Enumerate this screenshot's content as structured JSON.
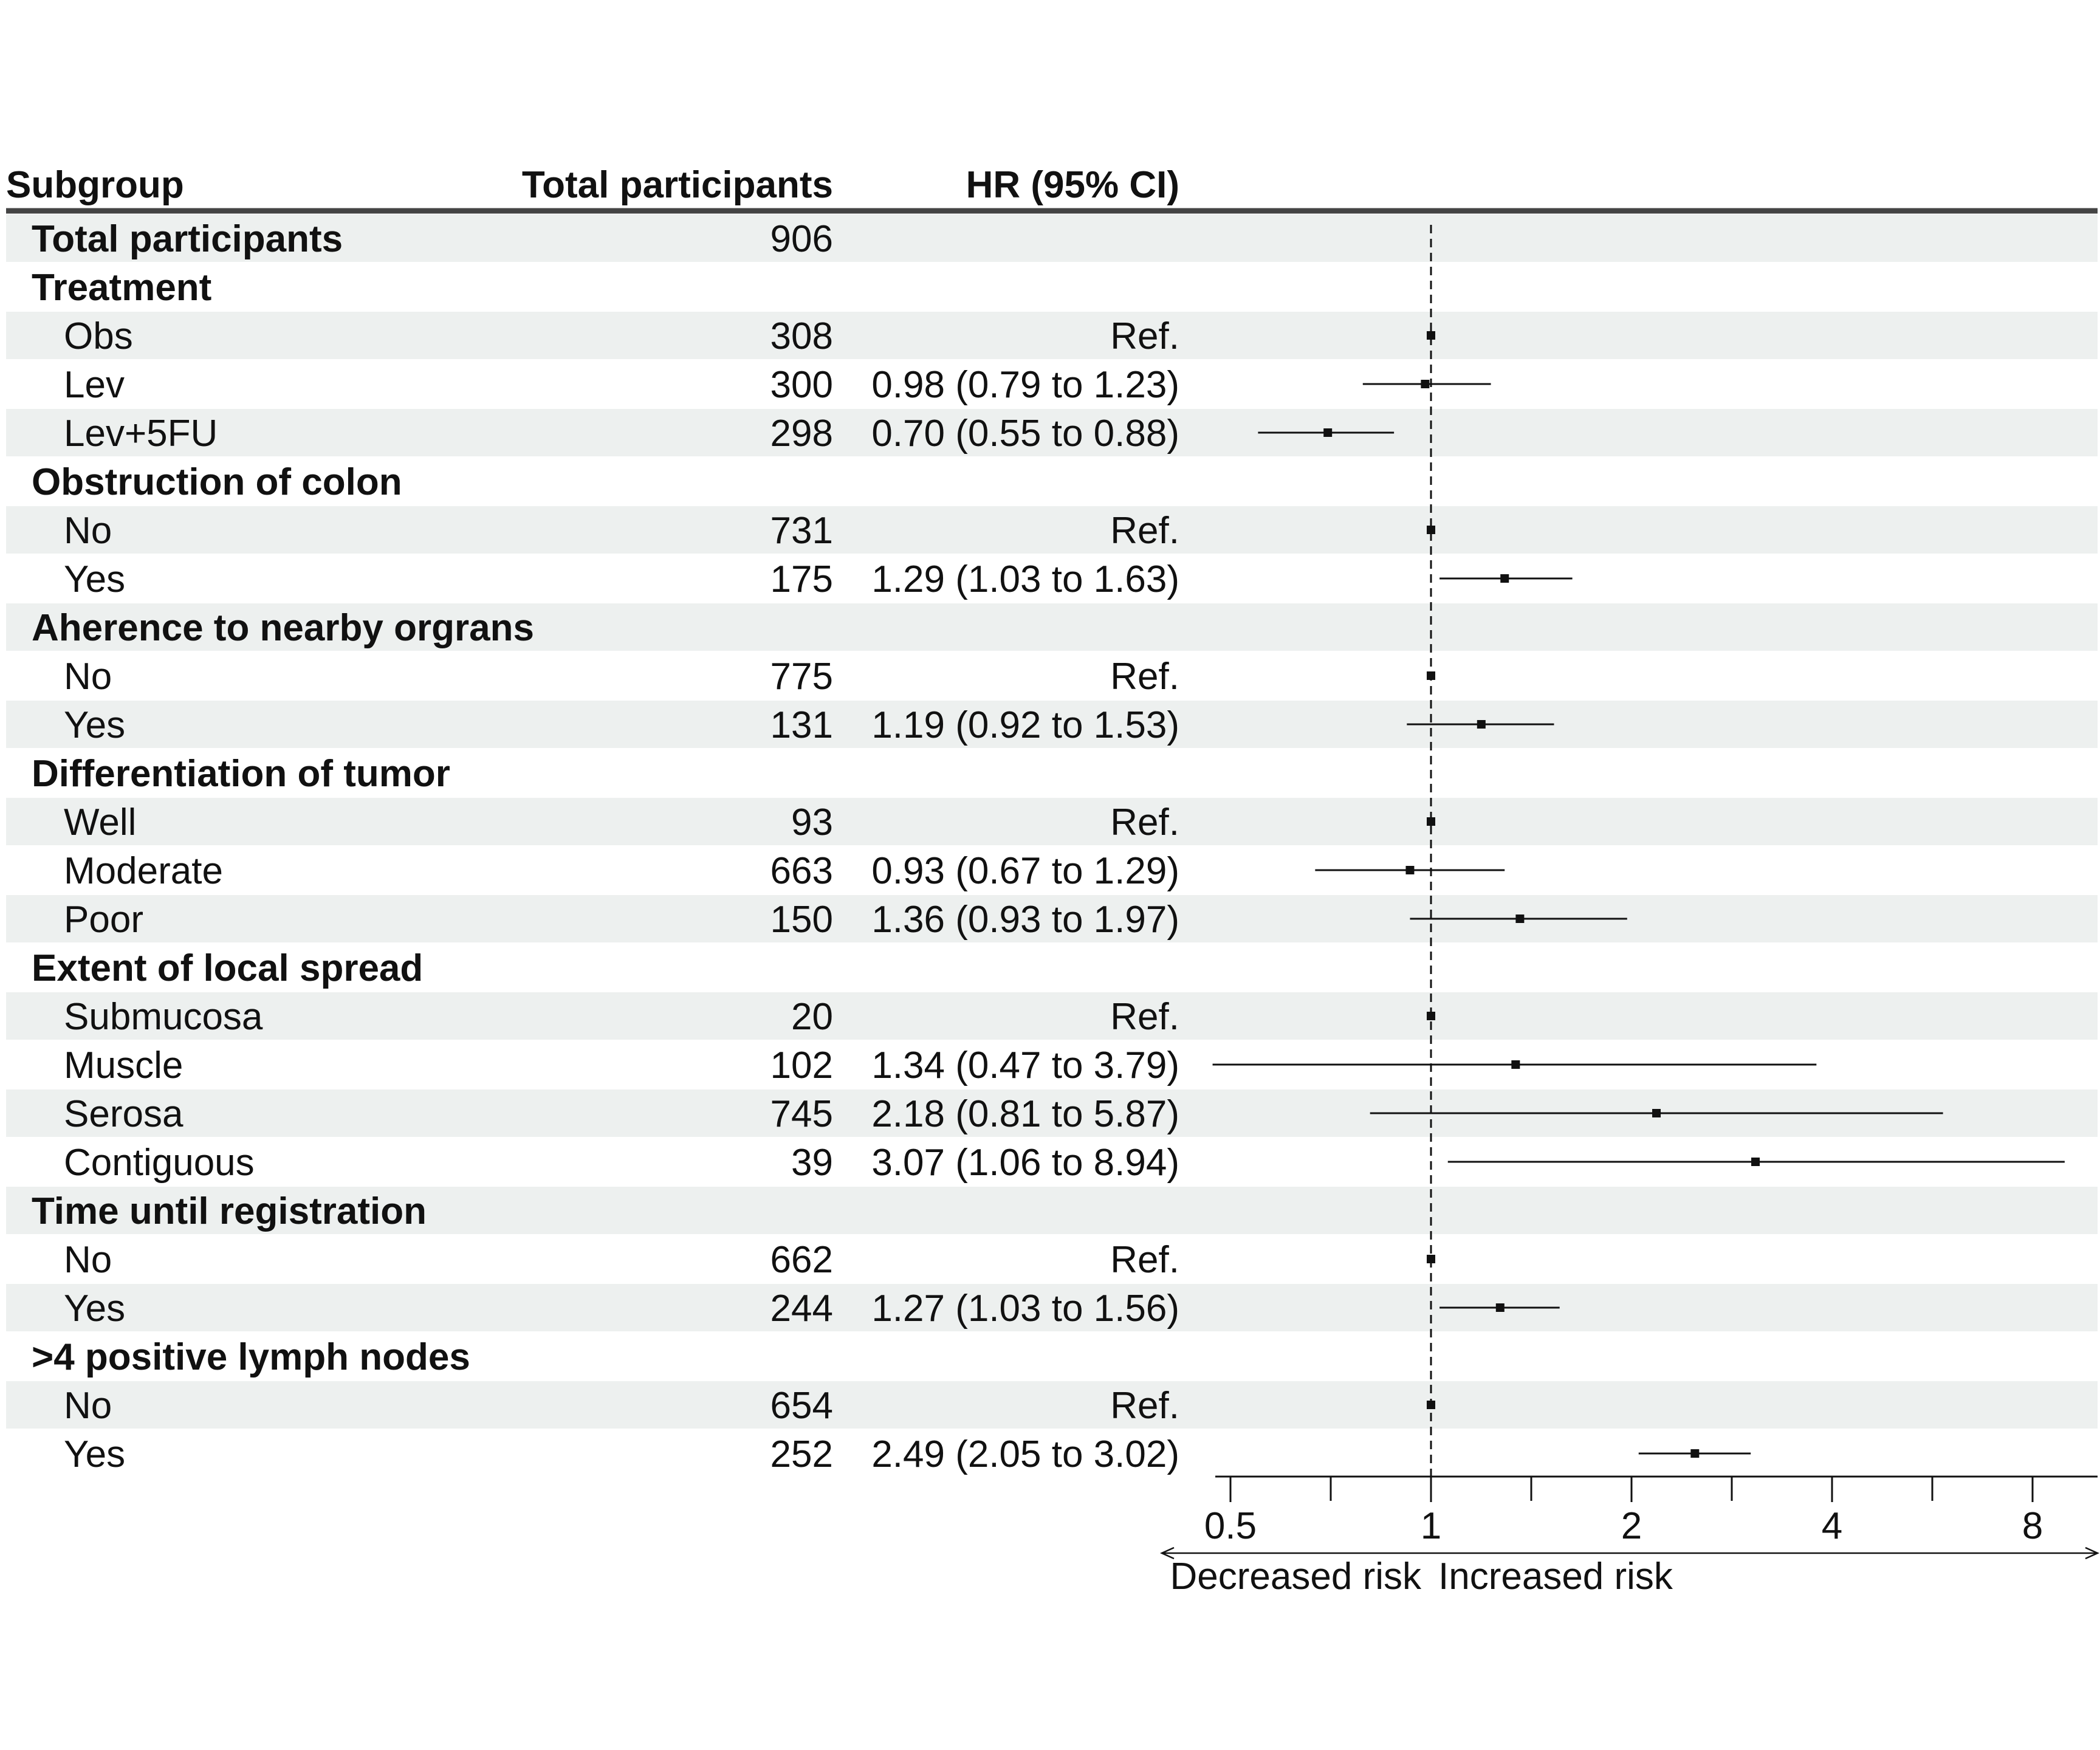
{
  "chart_data": {
    "type": "forest",
    "columns": {
      "subgroup": "Subgroup",
      "total": "Total participants",
      "hr": "HR (95% CI)"
    },
    "rows": [
      {
        "label": "Total participants",
        "kind": "group",
        "n": "906",
        "hr_text": "",
        "hr": null,
        "lo": null,
        "hi": null
      },
      {
        "label": "Treatment",
        "kind": "group",
        "n": "",
        "hr_text": "",
        "hr": null,
        "lo": null,
        "hi": null
      },
      {
        "label": "Obs",
        "kind": "sub",
        "n": "308",
        "hr_text": "Ref.",
        "hr": 1,
        "lo": null,
        "hi": null
      },
      {
        "label": "Lev",
        "kind": "sub",
        "n": "300",
        "hr_text": "0.98 (0.79 to 1.23)",
        "hr": 0.98,
        "lo": 0.79,
        "hi": 1.23
      },
      {
        "label": "Lev+5FU",
        "kind": "sub",
        "n": "298",
        "hr_text": "0.70 (0.55 to 0.88)",
        "hr": 0.7,
        "lo": 0.55,
        "hi": 0.88
      },
      {
        "label": "Obstruction of colon",
        "kind": "group",
        "n": "",
        "hr_text": "",
        "hr": null,
        "lo": null,
        "hi": null
      },
      {
        "label": "No",
        "kind": "sub",
        "n": "731",
        "hr_text": "Ref.",
        "hr": 1,
        "lo": null,
        "hi": null
      },
      {
        "label": "Yes",
        "kind": "sub",
        "n": "175",
        "hr_text": "1.29 (1.03 to 1.63)",
        "hr": 1.29,
        "lo": 1.03,
        "hi": 1.63
      },
      {
        "label": "Aherence to nearby orgrans",
        "kind": "group",
        "n": "",
        "hr_text": "",
        "hr": null,
        "lo": null,
        "hi": null
      },
      {
        "label": "No",
        "kind": "sub",
        "n": "775",
        "hr_text": "Ref.",
        "hr": 1,
        "lo": null,
        "hi": null
      },
      {
        "label": "Yes",
        "kind": "sub",
        "n": "131",
        "hr_text": "1.19 (0.92 to 1.53)",
        "hr": 1.19,
        "lo": 0.92,
        "hi": 1.53
      },
      {
        "label": "Differentiation of tumor",
        "kind": "group",
        "n": "",
        "hr_text": "",
        "hr": null,
        "lo": null,
        "hi": null
      },
      {
        "label": "Well",
        "kind": "sub",
        "n": "93",
        "hr_text": "Ref.",
        "hr": 1,
        "lo": null,
        "hi": null
      },
      {
        "label": "Moderate",
        "kind": "sub",
        "n": "663",
        "hr_text": "0.93 (0.67 to 1.29)",
        "hr": 0.93,
        "lo": 0.67,
        "hi": 1.29
      },
      {
        "label": "Poor",
        "kind": "sub",
        "n": "150",
        "hr_text": "1.36 (0.93 to 1.97)",
        "hr": 1.36,
        "lo": 0.93,
        "hi": 1.97
      },
      {
        "label": "Extent of local spread",
        "kind": "group",
        "n": "",
        "hr_text": "",
        "hr": null,
        "lo": null,
        "hi": null
      },
      {
        "label": "Submucosa",
        "kind": "sub",
        "n": "20",
        "hr_text": "Ref.",
        "hr": 1,
        "lo": null,
        "hi": null
      },
      {
        "label": "Muscle",
        "kind": "sub",
        "n": "102",
        "hr_text": "1.34 (0.47 to 3.79)",
        "hr": 1.34,
        "lo": 0.47,
        "hi": 3.79
      },
      {
        "label": "Serosa",
        "kind": "sub",
        "n": "745",
        "hr_text": "2.18 (0.81 to 5.87)",
        "hr": 2.18,
        "lo": 0.81,
        "hi": 5.87
      },
      {
        "label": "Contiguous",
        "kind": "sub",
        "n": "39",
        "hr_text": "3.07 (1.06 to 8.94)",
        "hr": 3.07,
        "lo": 1.06,
        "hi": 8.94
      },
      {
        "label": "Time until registration",
        "kind": "group",
        "n": "",
        "hr_text": "",
        "hr": null,
        "lo": null,
        "hi": null
      },
      {
        "label": "No",
        "kind": "sub",
        "n": "662",
        "hr_text": "Ref.",
        "hr": 1,
        "lo": null,
        "hi": null
      },
      {
        "label": "Yes",
        "kind": "sub",
        "n": "244",
        "hr_text": "1.27 (1.03 to 1.56)",
        "hr": 1.27,
        "lo": 1.03,
        "hi": 1.56
      },
      {
        "label": ">4 positive lymph nodes",
        "kind": "group",
        "n": "",
        "hr_text": "",
        "hr": null,
        "lo": null,
        "hi": null
      },
      {
        "label": "No",
        "kind": "sub",
        "n": "654",
        "hr_text": "Ref.",
        "hr": 1,
        "lo": null,
        "hi": null
      },
      {
        "label": "Yes",
        "kind": "sub",
        "n": "252",
        "hr_text": "2.49 (2.05 to 3.02)",
        "hr": 2.49,
        "lo": 2.05,
        "hi": 3.02
      }
    ],
    "x_axis": {
      "scale": "log2",
      "range": [
        0.5,
        8
      ],
      "major_ticks": [
        0.5,
        1,
        2,
        4,
        8
      ],
      "minor_ticks": [
        0.7071,
        1.4142,
        2.8284,
        5.6569
      ],
      "reference_line": 1,
      "label_left": "Decreased risk",
      "label_right": "Increased risk"
    },
    "colors": {
      "band": "#edf0ef",
      "text": "#111111",
      "line": "#111111",
      "header_rule": "#444444"
    }
  }
}
